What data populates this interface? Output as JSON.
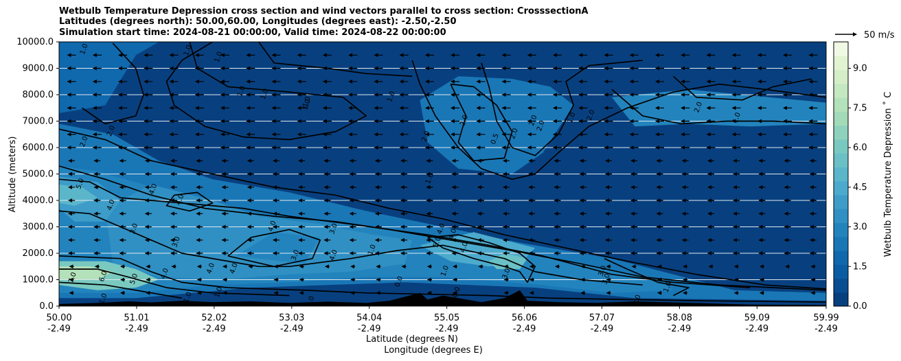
{
  "chart_data": {
    "type": "heatmap",
    "title": [
      "Wetbulb Temperature Depression cross section and wind vectors parallel to cross section: CrosssectionA",
      "Latitudes (degrees north): 50.00,60.00, Longitudes (degrees east): -2.50,-2.50",
      "Simulation start time: 2024-08-21 00:00:00, Valid time: 2024-08-22 00:00:00"
    ],
    "ylabel": "Altitude (meters)",
    "xlabel": "Latitude (degrees N)",
    "xlabel2": "Longitude (degrees E)",
    "ylim": [
      0,
      10000
    ],
    "xlim": [
      50.0,
      59.99
    ],
    "yticks": [
      "0.0",
      "1000.0",
      "2000.0",
      "3000.0",
      "4000.0",
      "5000.0",
      "6000.0",
      "7000.0",
      "8000.0",
      "9000.0",
      "10000.0"
    ],
    "xticks": [
      {
        "lat": "50.00",
        "lon": "-2.49",
        "value": 50.0
      },
      {
        "lat": "51.01",
        "lon": "-2.49",
        "value": 51.01
      },
      {
        "lat": "52.02",
        "lon": "-2.49",
        "value": 52.02
      },
      {
        "lat": "53.03",
        "lon": "-2.49",
        "value": 53.03
      },
      {
        "lat": "54.04",
        "lon": "-2.49",
        "value": 54.04
      },
      {
        "lat": "55.05",
        "lon": "-2.49",
        "value": 55.05
      },
      {
        "lat": "56.06",
        "lon": "-2.49",
        "value": 56.06
      },
      {
        "lat": "57.07",
        "lon": "-2.49",
        "value": 57.07
      },
      {
        "lat": "58.08",
        "lon": "-2.49",
        "value": 58.08
      },
      {
        "lat": "59.09",
        "lon": "-2.49",
        "value": 59.09
      },
      {
        "lat": "59.99",
        "lon": "-2.49",
        "value": 59.99
      }
    ],
    "grid": "horizontal",
    "colorbar": {
      "label": "Wetbulb Temperature Depression $^\\circ$C",
      "min": 0.0,
      "max": 10.0,
      "ticks": [
        "0.0",
        "1.5",
        "3.0",
        "4.5",
        "6.0",
        "7.5",
        "9.0"
      ],
      "tick_values": [
        0,
        1.5,
        3,
        4.5,
        6,
        7.5,
        9
      ],
      "colors": [
        "#08407f",
        "#0a4e92",
        "#0b5da3",
        "#1068ad",
        "#1a77b6",
        "#2384bd",
        "#3090c3",
        "#3d9cc8",
        "#4caacd",
        "#5bb6ca",
        "#6bc0c5",
        "#7ac9c0",
        "#8ed2bd",
        "#a3dab8",
        "#b3e1b9",
        "#c4e8c0",
        "#d4eec8",
        "#e2f3d2",
        "#eff9e4"
      ]
    },
    "wind_key": {
      "label": "50 m/s",
      "speed": 50
    },
    "wind_direction": "towards decreasing latitude (south)",
    "contour_labels": [
      {
        "text": "1.0",
        "lat": 50.35,
        "alt": 9700
      },
      {
        "text": "1.0",
        "lat": 51.7,
        "alt": 9650
      },
      {
        "text": "1.0",
        "lat": 52.1,
        "alt": 9400
      },
      {
        "text": "1.0",
        "lat": 52.4,
        "alt": 8100
      },
      {
        "text": "1.0",
        "lat": 52.7,
        "alt": 8000
      },
      {
        "text": "1.0",
        "lat": 53.25,
        "alt": 7600
      },
      {
        "text": "2.0",
        "lat": 50.7,
        "alt": 6600
      },
      {
        "text": "2.0",
        "lat": 50.35,
        "alt": 6200
      },
      {
        "text": "5.0",
        "lat": 50.3,
        "alt": 4600
      },
      {
        "text": "4.0",
        "lat": 50.7,
        "alt": 3800
      },
      {
        "text": "4.0",
        "lat": 51.25,
        "alt": 4400
      },
      {
        "text": "4.0",
        "lat": 51.6,
        "alt": 4000
      },
      {
        "text": "3.0",
        "lat": 51.0,
        "alt": 2900
      },
      {
        "text": "3.0",
        "lat": 51.55,
        "alt": 2400
      },
      {
        "text": "4.0",
        "lat": 52.8,
        "alt": 3000
      },
      {
        "text": "3.0",
        "lat": 53.6,
        "alt": 2900
      },
      {
        "text": "3.0",
        "lat": 53.1,
        "alt": 1900
      },
      {
        "text": "4.0",
        "lat": 53.6,
        "alt": 1900
      },
      {
        "text": "4.0",
        "lat": 52.0,
        "alt": 1400
      },
      {
        "text": "4.0",
        "lat": 52.3,
        "alt": 1400
      },
      {
        "text": "7.0",
        "lat": 50.2,
        "alt": 1050
      },
      {
        "text": "6.0",
        "lat": 50.6,
        "alt": 1100
      },
      {
        "text": "5.0",
        "lat": 51.0,
        "alt": 1000
      },
      {
        "text": "4.0",
        "lat": 51.4,
        "alt": 1200
      },
      {
        "text": "1.0",
        "lat": 50.6,
        "alt": 250
      },
      {
        "text": "1.0",
        "lat": 51.7,
        "alt": 300
      },
      {
        "text": "1.0",
        "lat": 52.1,
        "alt": 500
      },
      {
        "text": "1.0",
        "lat": 53.3,
        "alt": 150
      },
      {
        "text": "1.0",
        "lat": 54.1,
        "alt": 2100
      },
      {
        "text": "4.0",
        "lat": 55.0,
        "alt": 2900
      },
      {
        "text": "5.0",
        "lat": 54.95,
        "alt": 2400
      },
      {
        "text": "4.0",
        "lat": 55.15,
        "alt": 2700
      },
      {
        "text": "4.0",
        "lat": 55.3,
        "alt": 2200
      },
      {
        "text": "1.0",
        "lat": 55.05,
        "alt": 1300
      },
      {
        "text": "3.0",
        "lat": 55.85,
        "alt": 1200
      },
      {
        "text": "3.0",
        "lat": 57.1,
        "alt": 1300
      },
      {
        "text": "3.0",
        "lat": 57.15,
        "alt": 1000
      },
      {
        "text": "1.0",
        "lat": 57.95,
        "alt": 700
      },
      {
        "text": "2.0",
        "lat": 57.55,
        "alt": 200
      },
      {
        "text": "0.0",
        "lat": 55.2,
        "alt": 500
      },
      {
        "text": "0.0",
        "lat": 54.45,
        "alt": 900
      },
      {
        "text": "1.0",
        "lat": 54.85,
        "alt": 4800
      },
      {
        "text": "2.0",
        "lat": 54.8,
        "alt": 6400
      },
      {
        "text": "2.0",
        "lat": 55.3,
        "alt": 7000
      },
      {
        "text": "0.5",
        "lat": 55.7,
        "alt": 6300
      },
      {
        "text": "2.0",
        "lat": 55.95,
        "alt": 6500
      },
      {
        "text": "2.0",
        "lat": 56.2,
        "alt": 7000
      },
      {
        "text": "2.0",
        "lat": 56.3,
        "alt": 6800
      },
      {
        "text": "1.0",
        "lat": 56.7,
        "alt": 7100
      },
      {
        "text": "2.0",
        "lat": 56.95,
        "alt": 7200
      },
      {
        "text": "1.0",
        "lat": 54.35,
        "alt": 7900
      },
      {
        "text": "1.0",
        "lat": 53.25,
        "alt": 7700
      },
      {
        "text": "2.0",
        "lat": 58.35,
        "alt": 7500
      },
      {
        "text": "1.0",
        "lat": 58.85,
        "alt": 7100
      }
    ]
  }
}
